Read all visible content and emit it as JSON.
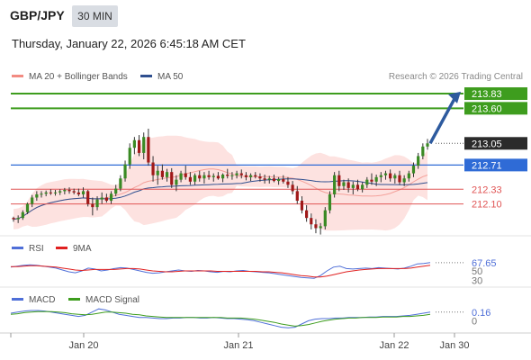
{
  "header": {
    "pair": "GBP/JPY",
    "timeframe": "30 MIN",
    "datetime": "Thursday, January 22, 2026 6:45:18 AM CET"
  },
  "legend_main": [
    {
      "label": "MA 20 + Bollinger Bands",
      "color": "#f28b82"
    },
    {
      "label": "MA 50",
      "color": "#2f4f8f"
    }
  ],
  "credit": "Research © 2026 Trading Central",
  "legend_rsi": [
    {
      "label": "RSI",
      "color": "#4f6fd8"
    },
    {
      "label": "9MA",
      "color": "#e02020"
    }
  ],
  "legend_macd": [
    {
      "label": "MACD",
      "color": "#4f6fd8"
    },
    {
      "label": "MACD Signal",
      "color": "#3e9d1e"
    }
  ],
  "colors": {
    "target": "#3e9d1e",
    "pivot": "#2f6bd6",
    "support": "#e05555",
    "arrow": "#2d5a9e",
    "price_tag": "#2b2b2b"
  },
  "chart_data": [
    {
      "type": "candlestick",
      "x_ticks": [
        "Jan 20",
        "Jan 21",
        "Jan 22",
        "Jan 30"
      ],
      "y_range": [
        211.6,
        214.0
      ],
      "candles": [
        [
          211.88,
          211.9,
          211.82,
          211.86
        ],
        [
          211.86,
          211.92,
          211.8,
          211.88
        ],
        [
          211.88,
          212.0,
          211.85,
          211.97
        ],
        [
          211.97,
          212.12,
          211.94,
          212.1
        ],
        [
          212.1,
          212.24,
          212.05,
          212.2
        ],
        [
          212.2,
          212.3,
          212.15,
          212.25
        ],
        [
          212.25,
          212.3,
          212.2,
          212.26
        ],
        [
          212.26,
          212.31,
          212.22,
          212.28
        ],
        [
          212.28,
          212.33,
          212.24,
          212.27
        ],
        [
          212.27,
          212.32,
          212.23,
          212.28
        ],
        [
          212.28,
          212.33,
          212.24,
          212.3
        ],
        [
          212.3,
          212.35,
          212.25,
          212.32
        ],
        [
          212.32,
          212.36,
          212.26,
          212.3
        ],
        [
          212.3,
          212.34,
          212.25,
          212.28
        ],
        [
          212.28,
          212.34,
          212.22,
          212.25
        ],
        [
          212.25,
          212.36,
          212.2,
          212.3
        ],
        [
          212.3,
          212.32,
          212.06,
          212.1
        ],
        [
          212.1,
          212.2,
          211.92,
          212.05
        ],
        [
          212.05,
          212.22,
          212.0,
          212.17
        ],
        [
          212.17,
          212.28,
          212.1,
          212.2
        ],
        [
          212.2,
          212.26,
          212.12,
          212.15
        ],
        [
          212.15,
          212.3,
          212.1,
          212.26
        ],
        [
          212.26,
          212.4,
          212.22,
          212.34
        ],
        [
          212.34,
          212.55,
          212.3,
          212.5
        ],
        [
          212.5,
          212.78,
          212.45,
          212.72
        ],
        [
          212.72,
          213.05,
          212.65,
          212.98
        ],
        [
          212.98,
          213.15,
          212.88,
          213.1
        ],
        [
          213.1,
          213.18,
          212.85,
          212.9
        ],
        [
          212.9,
          213.22,
          212.8,
          213.15
        ],
        [
          213.15,
          213.28,
          212.7,
          212.75
        ],
        [
          212.75,
          212.85,
          212.45,
          212.55
        ],
        [
          212.55,
          212.7,
          212.4,
          212.62
        ],
        [
          212.62,
          212.72,
          212.48,
          212.52
        ],
        [
          212.52,
          212.65,
          212.45,
          212.6
        ],
        [
          212.6,
          212.66,
          212.35,
          212.4
        ],
        [
          212.4,
          212.55,
          212.3,
          212.48
        ],
        [
          212.48,
          212.62,
          212.44,
          212.58
        ],
        [
          212.58,
          212.7,
          212.48,
          212.52
        ],
        [
          212.52,
          212.6,
          212.4,
          212.45
        ],
        [
          212.45,
          212.58,
          212.4,
          212.55
        ],
        [
          212.55,
          212.62,
          212.45,
          212.5
        ],
        [
          212.5,
          212.6,
          212.42,
          212.55
        ],
        [
          212.55,
          212.62,
          212.48,
          212.52
        ],
        [
          212.52,
          212.58,
          212.45,
          212.54
        ],
        [
          212.54,
          212.6,
          212.48,
          212.5
        ],
        [
          212.5,
          212.58,
          212.44,
          212.56
        ],
        [
          212.56,
          212.65,
          212.5,
          212.54
        ],
        [
          212.54,
          212.6,
          212.48,
          212.55
        ],
        [
          212.55,
          212.62,
          212.5,
          212.58
        ],
        [
          212.58,
          212.64,
          212.5,
          212.55
        ],
        [
          212.55,
          212.6,
          212.47,
          212.52
        ],
        [
          212.52,
          212.58,
          212.46,
          212.55
        ],
        [
          212.55,
          212.6,
          212.5,
          212.53
        ],
        [
          212.53,
          212.58,
          212.45,
          212.5
        ],
        [
          212.5,
          212.56,
          212.42,
          212.48
        ],
        [
          212.48,
          212.54,
          212.42,
          212.5
        ],
        [
          212.5,
          212.56,
          212.44,
          212.46
        ],
        [
          212.46,
          212.52,
          212.4,
          212.49
        ],
        [
          212.49,
          212.55,
          212.42,
          212.45
        ],
        [
          212.45,
          212.52,
          212.35,
          212.4
        ],
        [
          212.4,
          212.46,
          212.25,
          212.3
        ],
        [
          212.3,
          212.38,
          212.1,
          212.15
        ],
        [
          212.15,
          212.22,
          211.95,
          212.0
        ],
        [
          212.0,
          212.08,
          211.82,
          211.88
        ],
        [
          211.88,
          211.95,
          211.7,
          211.78
        ],
        [
          211.78,
          211.86,
          211.64,
          211.72
        ],
        [
          211.72,
          211.8,
          211.62,
          211.75
        ],
        [
          211.75,
          212.05,
          211.7,
          212.0
        ],
        [
          212.0,
          212.3,
          211.95,
          212.25
        ],
        [
          212.25,
          212.6,
          212.2,
          212.55
        ],
        [
          212.55,
          212.62,
          212.3,
          212.38
        ],
        [
          212.38,
          212.48,
          212.32,
          212.44
        ],
        [
          212.44,
          212.5,
          212.28,
          212.35
        ],
        [
          212.35,
          212.45,
          212.25,
          212.4
        ],
        [
          212.4,
          212.48,
          212.3,
          212.33
        ],
        [
          212.33,
          212.44,
          212.28,
          212.4
        ],
        [
          212.4,
          212.52,
          212.35,
          212.48
        ],
        [
          212.48,
          212.58,
          212.4,
          212.45
        ],
        [
          212.45,
          212.56,
          212.38,
          212.52
        ],
        [
          212.52,
          212.6,
          212.44,
          212.55
        ],
        [
          212.55,
          212.62,
          212.48,
          212.58
        ],
        [
          212.58,
          212.64,
          212.45,
          212.5
        ],
        [
          212.5,
          212.58,
          212.42,
          212.55
        ],
        [
          212.55,
          212.62,
          212.4,
          212.44
        ],
        [
          212.44,
          212.55,
          212.38,
          212.5
        ],
        [
          212.5,
          212.62,
          212.45,
          212.58
        ],
        [
          212.58,
          212.75,
          212.52,
          212.7
        ],
        [
          212.7,
          212.9,
          212.65,
          212.85
        ],
        [
          212.85,
          213.05,
          212.8,
          213.0
        ],
        [
          213.0,
          213.12,
          212.95,
          213.05
        ]
      ],
      "levels": [
        {
          "value": 213.83,
          "label": "213.83",
          "kind": "target"
        },
        {
          "value": 213.6,
          "label": "213.60",
          "kind": "target"
        },
        {
          "value": 213.05,
          "label": "213.05",
          "kind": "price"
        },
        {
          "value": 212.71,
          "label": "212.71",
          "kind": "pivot"
        },
        {
          "value": 212.33,
          "label": "212.33",
          "kind": "support"
        },
        {
          "value": 212.1,
          "label": "212.10",
          "kind": "support"
        }
      ]
    },
    {
      "type": "line",
      "panel": "RSI",
      "y_ticks": [
        "67.65",
        "50",
        "30"
      ],
      "series": [
        {
          "name": "RSI",
          "values": [
            58,
            60,
            62,
            63,
            62,
            60,
            58,
            56,
            52,
            48,
            46,
            50,
            56,
            54,
            50,
            52,
            55,
            57,
            56,
            53,
            50,
            47,
            45,
            46,
            48,
            50,
            52,
            50,
            49,
            51,
            50,
            48,
            47,
            49,
            48,
            50,
            51,
            49,
            48,
            47,
            46,
            44,
            42,
            40,
            38,
            36,
            35,
            34,
            40,
            50,
            58,
            60,
            55,
            54,
            55,
            56,
            55,
            57,
            56,
            55,
            54,
            56,
            60,
            65,
            66,
            67.65
          ]
        },
        {
          "name": "9MA",
          "values": [
            59,
            59,
            60,
            61,
            61,
            60,
            59,
            58,
            56,
            54,
            52,
            51,
            52,
            53,
            53,
            53,
            53,
            54,
            55,
            55,
            54,
            52,
            50,
            49,
            48,
            48,
            49,
            50,
            50,
            50,
            50,
            50,
            49,
            49,
            49,
            49,
            49,
            49,
            49,
            48,
            48,
            47,
            46,
            44,
            42,
            40,
            39,
            37,
            37,
            39,
            42,
            45,
            48,
            50,
            52,
            53,
            54,
            55,
            55,
            55,
            55,
            55,
            56,
            58,
            60,
            62
          ]
        }
      ]
    },
    {
      "type": "line",
      "panel": "MACD",
      "y_ticks": [
        "0.16",
        "0"
      ],
      "series": [
        {
          "name": "MACD",
          "values": [
            0.14,
            0.16,
            0.18,
            0.19,
            0.19,
            0.18,
            0.16,
            0.14,
            0.12,
            0.1,
            0.08,
            0.1,
            0.16,
            0.22,
            0.2,
            0.16,
            0.12,
            0.1,
            0.08,
            0.06,
            0.06,
            0.05,
            0.04,
            0.04,
            0.05,
            0.05,
            0.06,
            0.06,
            0.05,
            0.05,
            0.06,
            0.05,
            0.04,
            0.04,
            0.03,
            0.02,
            0.0,
            -0.03,
            -0.06,
            -0.09,
            -0.12,
            -0.13,
            -0.12,
            -0.06,
            0.0,
            0.03,
            0.04,
            0.04,
            0.05,
            0.05,
            0.06,
            0.06,
            0.06,
            0.07,
            0.07,
            0.08,
            0.08,
            0.08,
            0.09,
            0.1,
            0.12,
            0.14,
            0.16
          ]
        },
        {
          "name": "MACD Signal",
          "values": [
            0.12,
            0.13,
            0.15,
            0.16,
            0.17,
            0.17,
            0.17,
            0.16,
            0.15,
            0.13,
            0.12,
            0.11,
            0.12,
            0.14,
            0.16,
            0.16,
            0.15,
            0.14,
            0.12,
            0.11,
            0.09,
            0.08,
            0.07,
            0.06,
            0.06,
            0.06,
            0.06,
            0.06,
            0.06,
            0.06,
            0.06,
            0.06,
            0.05,
            0.05,
            0.05,
            0.04,
            0.03,
            0.01,
            -0.01,
            -0.03,
            -0.06,
            -0.08,
            -0.1,
            -0.09,
            -0.07,
            -0.04,
            -0.01,
            0.01,
            0.03,
            0.04,
            0.05,
            0.05,
            0.06,
            0.06,
            0.06,
            0.07,
            0.07,
            0.07,
            0.08,
            0.08,
            0.09,
            0.1,
            0.12
          ]
        }
      ]
    }
  ]
}
